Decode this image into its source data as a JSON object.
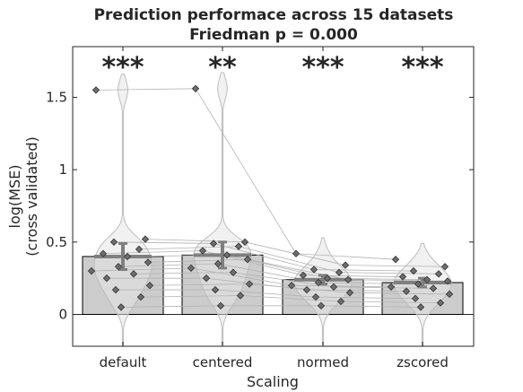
{
  "chart_data": {
    "type": "bar",
    "title": "Prediction performace across 15 datasets",
    "subtitle": "Friedman p = 0.000",
    "xlabel": "Scaling",
    "ylabel": [
      "log(MSE)",
      "(cross validated)"
    ],
    "categories": [
      "default",
      "centered",
      "normed",
      "zscored"
    ],
    "values": [
      0.4,
      0.41,
      0.24,
      0.22
    ],
    "error_low": [
      0.31,
      0.32,
      0.21,
      0.19
    ],
    "error_high": [
      0.49,
      0.5,
      0.27,
      0.25
    ],
    "significance": [
      "***",
      "**",
      "***",
      "***"
    ],
    "ylim": [
      -0.22,
      1.85
    ],
    "yticks": [
      0,
      0.5,
      1,
      1.5
    ],
    "ytick_labels": [
      "0",
      "0.5",
      "1",
      "1.5"
    ],
    "grid": false,
    "points": [
      [
        1.55,
        0.52,
        0.5,
        0.45,
        0.42,
        0.4,
        0.36,
        0.33,
        0.3,
        0.28,
        0.25,
        0.2,
        0.17,
        0.12,
        0.05
      ],
      [
        1.56,
        0.5,
        0.49,
        0.47,
        0.44,
        0.41,
        0.38,
        0.35,
        0.32,
        0.29,
        0.25,
        0.21,
        0.17,
        0.13,
        0.06
      ],
      [
        0.42,
        0.34,
        0.31,
        0.29,
        0.27,
        0.25,
        0.24,
        0.22,
        0.2,
        0.19,
        0.17,
        0.15,
        0.12,
        0.09,
        0.06
      ],
      [
        0.38,
        0.33,
        0.3,
        0.28,
        0.26,
        0.24,
        0.23,
        0.21,
        0.19,
        0.18,
        0.16,
        0.14,
        0.11,
        0.08,
        0.05
      ]
    ],
    "colors": {
      "bar_fill": "#cccccc",
      "bar_edge": "#000000",
      "violin_fill": "#e6e6e6",
      "violin_edge": "#bdbdbd",
      "point_fill": "#6e6e6e",
      "point_edge": "#333333",
      "mean_line": "#7f7f7f",
      "connector": "#b3b3b3",
      "text": "#262626"
    }
  }
}
